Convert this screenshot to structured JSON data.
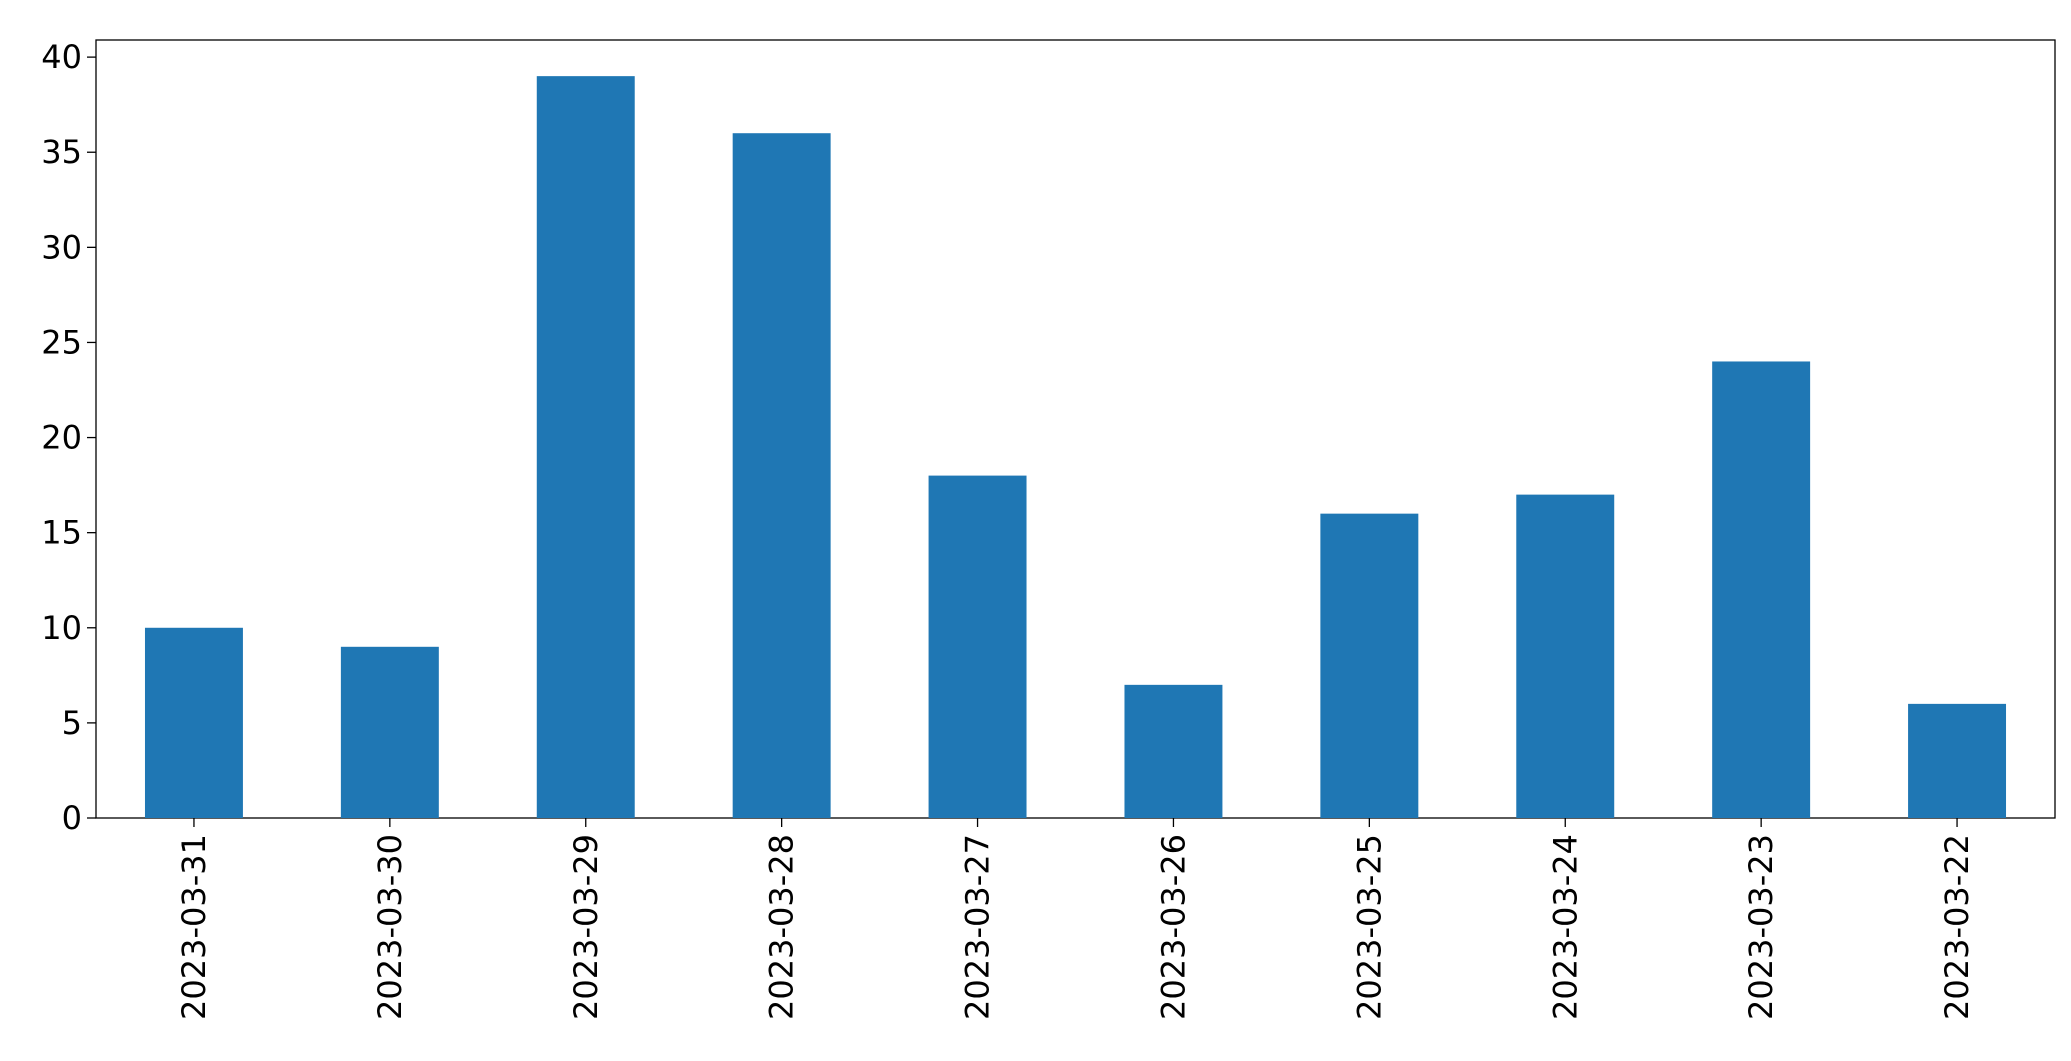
{
  "chart_data": {
    "type": "bar",
    "categories": [
      "2023-03-31",
      "2023-03-30",
      "2023-03-29",
      "2023-03-28",
      "2023-03-27",
      "2023-03-26",
      "2023-03-25",
      "2023-03-24",
      "2023-03-23",
      "2023-03-22"
    ],
    "values": [
      10,
      9,
      39,
      36,
      18,
      7,
      16,
      17,
      24,
      6
    ],
    "color": "#1f77b4",
    "ylim": [
      0,
      40.9
    ],
    "yticks": [
      0,
      5,
      10,
      15,
      20,
      25,
      30,
      35,
      40
    ],
    "grid": false
  }
}
